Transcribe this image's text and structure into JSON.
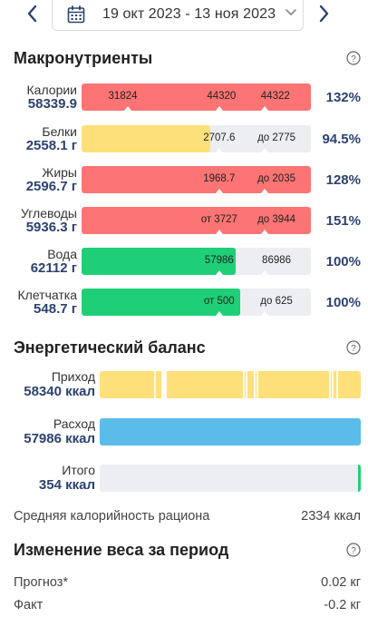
{
  "date_range": {
    "label": "19 окт 2023 - 13 ноя 2023"
  },
  "macros": {
    "title": "Макронутриенты",
    "rows": [
      {
        "name": "Калории",
        "value": "58339.9",
        "percent": "132%",
        "fill": 1.0,
        "color": "#fc7474",
        "labels": [
          {
            "text": "31824",
            "pos": 0.18
          },
          {
            "text": "44320",
            "pos": 0.61
          },
          {
            "text": "44322",
            "pos": 0.845
          }
        ],
        "ticks": [
          0.2,
          0.6,
          0.8
        ]
      },
      {
        "name": "Белки",
        "value": "2558.1 г",
        "percent": "94.5%",
        "fill": 0.56,
        "color": "#fde07a",
        "labels": [
          {
            "text": "2707.6",
            "pos": 0.6
          },
          {
            "text": "до 2775",
            "pos": 0.85
          }
        ],
        "ticks": [
          0.6,
          0.8
        ]
      },
      {
        "name": "Жиры",
        "value": "2596.7 г",
        "percent": "128%",
        "fill": 1.0,
        "color": "#fc7474",
        "labels": [
          {
            "text": "1968.7",
            "pos": 0.6
          },
          {
            "text": "до 2035",
            "pos": 0.85
          }
        ],
        "ticks": [
          0.6,
          0.8
        ]
      },
      {
        "name": "Углеводы",
        "value": "5936.3 г",
        "percent": "151%",
        "fill": 1.0,
        "color": "#fc7474",
        "labels": [
          {
            "text": "от 3727",
            "pos": 0.6
          },
          {
            "text": "до 3944",
            "pos": 0.85
          }
        ],
        "ticks": [
          0.6,
          0.8
        ]
      },
      {
        "name": "Вода",
        "value": "62112 г",
        "percent": "100%",
        "fill": 0.67,
        "color": "#1ecf78",
        "labels": [
          {
            "text": "57986",
            "pos": 0.6
          },
          {
            "text": "86986",
            "pos": 0.85
          }
        ],
        "ticks": [
          0.6,
          0.8
        ]
      },
      {
        "name": "Клетчатка",
        "value": "548.7 г",
        "percent": "100%",
        "fill": 0.69,
        "color": "#1ecf78",
        "labels": [
          {
            "text": "от 500",
            "pos": 0.6
          },
          {
            "text": "до 625",
            "pos": 0.85
          }
        ],
        "ticks": [
          0.6,
          0.8
        ]
      }
    ]
  },
  "energy": {
    "title": "Энергетический баланс",
    "rows": [
      {
        "name": "Приход",
        "value": "58340 ккал",
        "fill": 1.0,
        "color": "#fde07a",
        "segments": [
          0.21,
          0.235,
          0.24,
          0.245,
          0.25,
          0.55,
          0.56,
          0.59,
          0.6,
          0.88,
          0.89,
          0.905
        ]
      },
      {
        "name": "Расход",
        "value": "57986 ккал",
        "fill": 1.0,
        "color": "#5bbcea",
        "segments": []
      },
      {
        "name": "Итого",
        "value": "354 ккал",
        "fill": 0.01,
        "color": "#1ecf78",
        "align": "right",
        "segments": []
      }
    ]
  },
  "avg_calories": {
    "label": "Средняя калорийность рациона",
    "value": "2334 ккал"
  },
  "weight": {
    "title": "Изменение веса за период",
    "rows": [
      {
        "label": "Прогноз*",
        "value": "0.02 кг"
      },
      {
        "label": "Факт",
        "value": "-0.2 кг"
      }
    ]
  },
  "icons": {
    "prev": "chevron-left-icon",
    "next": "chevron-right-icon",
    "calendar": "calendar-icon",
    "dropdown": "chevron-down-icon",
    "help": "help-icon"
  },
  "colors": {
    "accent": "#2c4270",
    "over": "#fc7474",
    "warn": "#fde07a",
    "ok": "#1ecf78",
    "expense": "#5bbcea",
    "track": "#eceef1"
  }
}
